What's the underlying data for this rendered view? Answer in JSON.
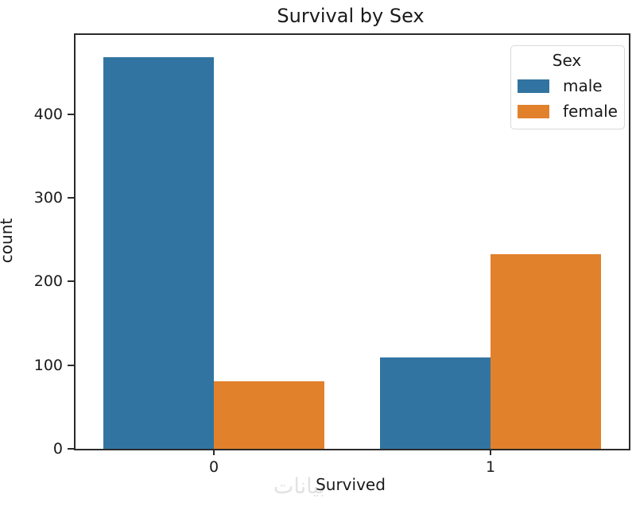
{
  "figure": {
    "watermark": {
      "text": "بيانات",
      "color": "#e2e2e2"
    }
  },
  "chart_data": {
    "type": "bar",
    "title": "Survival by Sex",
    "xlabel": "Survived",
    "ylabel": "count",
    "categories": [
      "0",
      "1"
    ],
    "series": [
      {
        "name": "male",
        "color": "#3274a1",
        "values": [
          468,
          109
        ]
      },
      {
        "name": "female",
        "color": "#e1812c",
        "values": [
          81,
          233
        ]
      }
    ],
    "legend": {
      "title": "Sex",
      "position": "upper right"
    },
    "ylim": [
      0,
      495
    ],
    "yticks": [
      0,
      100,
      200,
      300,
      400
    ],
    "xlim": [
      -0.5,
      1.5
    ],
    "bar_group_width": 0.8,
    "grid": false
  }
}
